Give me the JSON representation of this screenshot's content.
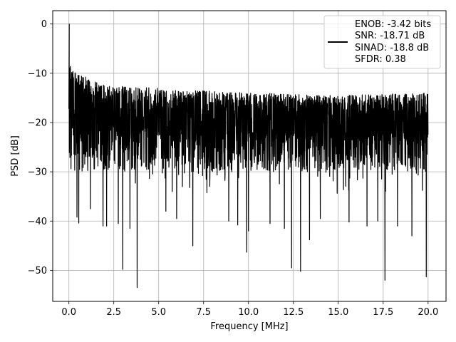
{
  "chart_data": {
    "type": "line",
    "title": "",
    "xlabel": "Frequency [MHz]",
    "ylabel": "PSD [dB]",
    "xlim": [
      -0.9,
      21.0
    ],
    "ylim": [
      -56.3,
      2.7
    ],
    "xticks": [
      0.0,
      2.5,
      5.0,
      7.5,
      10.0,
      12.5,
      15.0,
      17.5,
      20.0
    ],
    "xtick_labels": [
      "0.0",
      "2.5",
      "5.0",
      "7.5",
      "10.0",
      "12.5",
      "15.0",
      "17.5",
      "20.0"
    ],
    "yticks": [
      0,
      -10,
      -20,
      -30,
      -40,
      -50
    ],
    "ytick_labels": [
      "0",
      "−10",
      "−20",
      "−30",
      "−40",
      "−50"
    ],
    "grid": true,
    "legend_position": "top-right",
    "legend_entries": [
      "ENOB: -3.42 bits",
      "SNR: -18.71 dB",
      "SINAD: -18.8 dB",
      "SFDR: 0.38"
    ],
    "series": [
      {
        "color": "#000000",
        "x_start": 0.0,
        "x_end": 20.0,
        "samples": 2400,
        "peak": {
          "x": 0.02,
          "y": 0.0
        },
        "upper_envelope": [
          [
            0.0,
            -8
          ],
          [
            0.5,
            -10
          ],
          [
            2.0,
            -12.5
          ],
          [
            5.0,
            -13
          ],
          [
            10.0,
            -14
          ],
          [
            15.0,
            -14.5
          ],
          [
            20.0,
            -14
          ]
        ],
        "median_level": [
          [
            0.0,
            -15
          ],
          [
            1.0,
            -20
          ],
          [
            5.0,
            -21
          ],
          [
            10.0,
            -22
          ],
          [
            20.0,
            -22
          ]
        ],
        "notches": [
          {
            "x": 0.45,
            "y": -39.2
          },
          {
            "x": 0.55,
            "y": -40.4
          },
          {
            "x": 1.2,
            "y": -37.5
          },
          {
            "x": 1.9,
            "y": -41.0
          },
          {
            "x": 2.1,
            "y": -41.0
          },
          {
            "x": 2.75,
            "y": -40.5
          },
          {
            "x": 3.0,
            "y": -49.8
          },
          {
            "x": 3.4,
            "y": -41.5
          },
          {
            "x": 3.8,
            "y": -53.5
          },
          {
            "x": 5.4,
            "y": -38.0
          },
          {
            "x": 6.0,
            "y": -39.5
          },
          {
            "x": 6.9,
            "y": -45.0
          },
          {
            "x": 8.9,
            "y": -40.0
          },
          {
            "x": 9.4,
            "y": -40.8
          },
          {
            "x": 9.9,
            "y": -46.3
          },
          {
            "x": 10.0,
            "y": -42.0
          },
          {
            "x": 11.2,
            "y": -40.5
          },
          {
            "x": 12.0,
            "y": -41.5
          },
          {
            "x": 12.4,
            "y": -49.5
          },
          {
            "x": 12.9,
            "y": -50.2
          },
          {
            "x": 13.4,
            "y": -43.8
          },
          {
            "x": 14.0,
            "y": -39.5
          },
          {
            "x": 15.6,
            "y": -40.2
          },
          {
            "x": 16.6,
            "y": -41.0
          },
          {
            "x": 17.2,
            "y": -40.0
          },
          {
            "x": 17.6,
            "y": -52.0
          },
          {
            "x": 18.3,
            "y": -41.0
          },
          {
            "x": 19.1,
            "y": -43.0
          },
          {
            "x": 19.9,
            "y": -51.3
          }
        ]
      }
    ]
  }
}
